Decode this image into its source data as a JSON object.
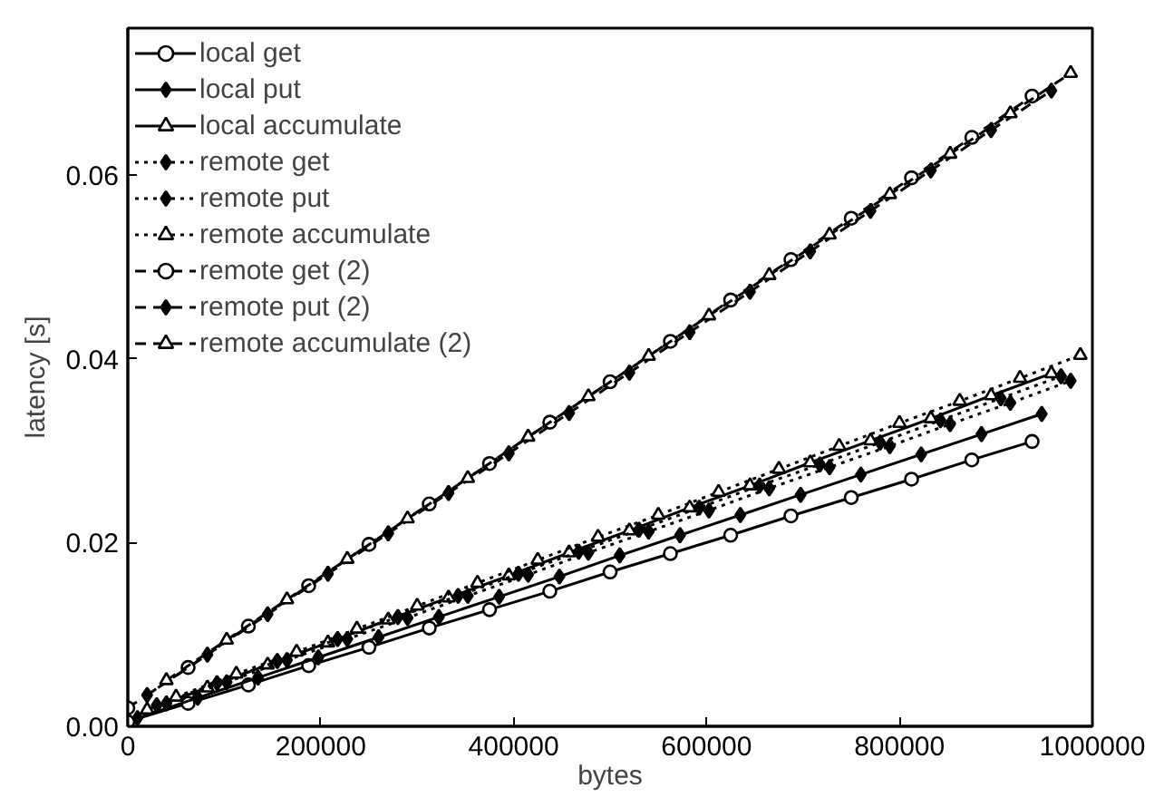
{
  "chart_data": {
    "type": "line",
    "xlabel": "bytes",
    "ylabel": "latency [s]",
    "xlim": [
      0,
      1000000
    ],
    "xticks": [
      0,
      200000,
      400000,
      600000,
      800000,
      1000000
    ],
    "ylim": [
      0,
      0.076
    ],
    "yticks": [
      {
        "value": 0,
        "label": "0.00"
      },
      {
        "value": 0.02,
        "label": "0.02"
      },
      {
        "value": 0.04,
        "label": "0.04"
      },
      {
        "value": 0.06,
        "label": "0.06"
      }
    ],
    "grid": false,
    "legend": "top left",
    "series": [
      {
        "name": "local get",
        "color": "#000000",
        "marker": "circle",
        "line_style": "solid",
        "x": [
          0,
          62500,
          125000,
          187500,
          250000,
          312500,
          375000,
          437500,
          500000,
          562500,
          625000,
          687500,
          750000,
          812500,
          875000,
          937500
        ],
        "values": [
          0.0005,
          0.0025,
          0.0045,
          0.0066,
          0.0086,
          0.0107,
          0.0127,
          0.0147,
          0.0168,
          0.0188,
          0.0208,
          0.0229,
          0.0249,
          0.0269,
          0.029,
          0.031
        ]
      },
      {
        "name": "local put",
        "color": "#000000",
        "marker": "diamond",
        "line_style": "solid",
        "x": [
          10000,
          72500,
          135000,
          197500,
          260000,
          322500,
          385000,
          447500,
          510000,
          572500,
          635000,
          697500,
          760000,
          822500,
          885000,
          947500
        ],
        "values": [
          0.0009,
          0.0031,
          0.0053,
          0.0075,
          0.0097,
          0.0119,
          0.0141,
          0.0163,
          0.0186,
          0.0208,
          0.023,
          0.0252,
          0.0274,
          0.0296,
          0.0318,
          0.034
        ]
      },
      {
        "name": "local accumulate",
        "color": "#000000",
        "marker": "triangle",
        "line_style": "solid",
        "x": [
          20000,
          82500,
          145000,
          207500,
          270000,
          332500,
          395000,
          457500,
          520000,
          582500,
          645000,
          707500,
          770000,
          832500,
          895000,
          957500
        ],
        "values": [
          0.0018,
          0.0042,
          0.0067,
          0.0091,
          0.0116,
          0.014,
          0.0164,
          0.0189,
          0.0213,
          0.0238,
          0.0262,
          0.0287,
          0.0311,
          0.0335,
          0.036,
          0.0384
        ]
      },
      {
        "name": "remote get",
        "color": "#000000",
        "marker": "diamond",
        "line_style": "dotted",
        "x": [
          30000,
          92500,
          155000,
          217500,
          280000,
          342500,
          405000,
          467500,
          530000,
          592500,
          655000,
          717500,
          780000,
          842500,
          905000,
          967500
        ],
        "values": [
          0.0023,
          0.0047,
          0.0071,
          0.0095,
          0.0119,
          0.0142,
          0.0166,
          0.019,
          0.0214,
          0.0238,
          0.0262,
          0.0285,
          0.0309,
          0.0333,
          0.0357,
          0.0381
        ]
      },
      {
        "name": "remote put",
        "color": "#000000",
        "marker": "diamond",
        "line_style": "dotted",
        "x": [
          40000,
          102500,
          165000,
          227500,
          290000,
          352500,
          415000,
          477500,
          540000,
          602500,
          665000,
          727500,
          790000,
          852500,
          915000,
          977500
        ],
        "values": [
          0.0025,
          0.0048,
          0.0072,
          0.0095,
          0.0118,
          0.0142,
          0.0165,
          0.0189,
          0.0212,
          0.0235,
          0.0259,
          0.0282,
          0.0305,
          0.0329,
          0.0352,
          0.0376
        ]
      },
      {
        "name": "remote accumulate",
        "color": "#000000",
        "marker": "triangle",
        "line_style": "dotted",
        "x": [
          50000,
          112500,
          175000,
          237500,
          300000,
          362500,
          425000,
          487500,
          550000,
          612500,
          675000,
          737500,
          800000,
          862500,
          925000,
          987500
        ],
        "values": [
          0.0032,
          0.0057,
          0.0081,
          0.0106,
          0.0131,
          0.0156,
          0.0181,
          0.0206,
          0.023,
          0.0255,
          0.028,
          0.0305,
          0.033,
          0.0354,
          0.0379,
          0.0404
        ]
      },
      {
        "name": "remote get (2)",
        "color": "#000000",
        "marker": "circle",
        "line_style": "dashed",
        "x": [
          0,
          62500,
          125000,
          187500,
          250000,
          312500,
          375000,
          437500,
          500000,
          562500,
          625000,
          687500,
          750000,
          812500,
          875000,
          937500
        ],
        "values": [
          0.002,
          0.0064,
          0.0109,
          0.0153,
          0.0198,
          0.0242,
          0.0286,
          0.0331,
          0.0375,
          0.0419,
          0.0464,
          0.0508,
          0.0553,
          0.0597,
          0.0641,
          0.0686
        ]
      },
      {
        "name": "remote put (2)",
        "color": "#000000",
        "marker": "diamond",
        "line_style": "dashed",
        "x": [
          20000,
          82500,
          145000,
          207500,
          270000,
          332500,
          395000,
          457500,
          520000,
          582500,
          645000,
          707500,
          770000,
          832500,
          895000,
          957500
        ],
        "values": [
          0.0034,
          0.0078,
          0.0122,
          0.0166,
          0.021,
          0.0254,
          0.0297,
          0.0341,
          0.0385,
          0.0429,
          0.0473,
          0.0517,
          0.0561,
          0.0605,
          0.0649,
          0.0692
        ]
      },
      {
        "name": "remote accumulate (2)",
        "color": "#000000",
        "marker": "triangle",
        "line_style": "dashed",
        "x": [
          40000,
          102500,
          165000,
          227500,
          290000,
          352500,
          415000,
          477500,
          540000,
          602500,
          665000,
          727500,
          790000,
          852500,
          915000,
          977500
        ],
        "values": [
          0.005,
          0.0094,
          0.0138,
          0.0182,
          0.0226,
          0.027,
          0.0315,
          0.0359,
          0.0403,
          0.0447,
          0.0491,
          0.0535,
          0.0579,
          0.0623,
          0.0667,
          0.0711
        ]
      }
    ]
  }
}
